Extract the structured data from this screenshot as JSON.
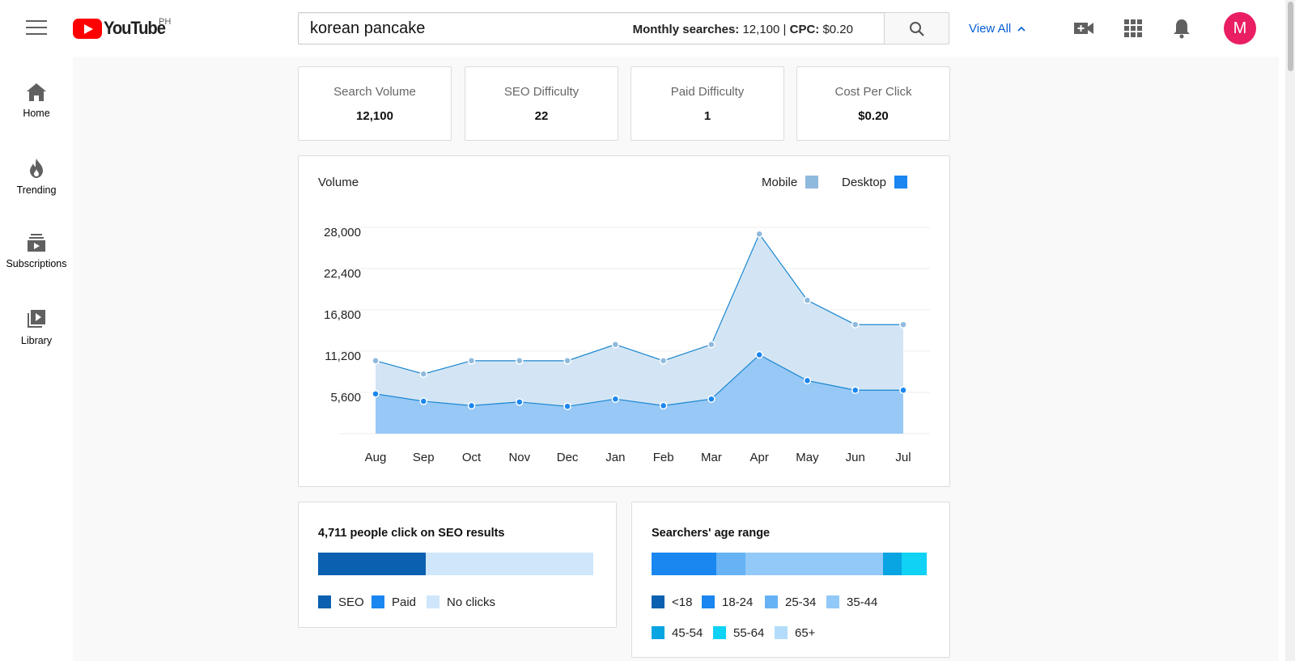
{
  "header": {
    "logo_text": "YouTube",
    "country": "PH",
    "search_value": "korean pancake",
    "monthly_label": "Monthly searches:",
    "monthly_value": "12,100",
    "separator": "|",
    "cpc_label": "CPC:",
    "cpc_value": "$0.20",
    "view_all": "View All",
    "avatar_letter": "M"
  },
  "sidebar": {
    "items": [
      {
        "label": "Home",
        "icon": "home-icon"
      },
      {
        "label": "Trending",
        "icon": "flame-icon"
      },
      {
        "label": "Subscriptions",
        "icon": "subscriptions-icon"
      },
      {
        "label": "Library",
        "icon": "library-icon"
      }
    ]
  },
  "stats": [
    {
      "label": "Search Volume",
      "value": "12,100"
    },
    {
      "label": "SEO Difficulty",
      "value": "22"
    },
    {
      "label": "Paid Difficulty",
      "value": "1"
    },
    {
      "label": "Cost Per Click",
      "value": "$0.20"
    }
  ],
  "colors": {
    "mobile": "#8fb9dd",
    "desktop": "#1a86f0",
    "seo": "#0b60b0",
    "paid": "#1a86f0",
    "no_clicks": "#cfe6fb",
    "age_lt18": "#0b60b0",
    "age_18_24": "#1a86f0",
    "age_25_34": "#66b2f5",
    "age_35_44": "#93c9f8",
    "age_45_54": "#09a4e2",
    "age_55_64": "#10d2f5",
    "age_65p": "#b3dcfb"
  },
  "chart_data": {
    "type": "area",
    "title": "Volume",
    "categories": [
      "Aug",
      "Sep",
      "Oct",
      "Nov",
      "Dec",
      "Jan",
      "Feb",
      "Mar",
      "Apr",
      "May",
      "Jun",
      "Jul"
    ],
    "series": [
      {
        "name": "Mobile",
        "values": [
          9900,
          8100,
          9900,
          9900,
          9900,
          12100,
          9900,
          12100,
          27100,
          18100,
          14800,
          14800
        ]
      },
      {
        "name": "Desktop",
        "values": [
          5400,
          4400,
          3800,
          4300,
          3700,
          4700,
          3800,
          4700,
          10700,
          7200,
          5900,
          5900
        ]
      }
    ],
    "y_ticks": [
      "5,600",
      "11,200",
      "16,800",
      "22,400",
      "28,000"
    ],
    "ylim": [
      0,
      28000
    ],
    "legend": [
      "Mobile",
      "Desktop"
    ]
  },
  "seo_clicks": {
    "title": "4,711 people click on SEO results",
    "segments": [
      {
        "name": "SEO",
        "percent": 39,
        "color_key": "seo"
      },
      {
        "name": "Paid",
        "percent": 0,
        "color_key": "paid"
      },
      {
        "name": "No clicks",
        "percent": 61,
        "color_key": "no_clicks"
      }
    ]
  },
  "age_range": {
    "title": "Searchers' age range",
    "segments": [
      {
        "name": "<18",
        "percent": 0,
        "color_key": "age_lt18"
      },
      {
        "name": "18-24",
        "percent": 23.5,
        "color_key": "age_18_24"
      },
      {
        "name": "25-34",
        "percent": 10.5,
        "color_key": "age_25_34"
      },
      {
        "name": "35-44",
        "percent": 50,
        "color_key": "age_35_44"
      },
      {
        "name": "45-54",
        "percent": 7,
        "color_key": "age_45_54"
      },
      {
        "name": "55-64",
        "percent": 9,
        "color_key": "age_55_64"
      },
      {
        "name": "65+",
        "percent": 0,
        "color_key": "age_65p"
      }
    ]
  }
}
